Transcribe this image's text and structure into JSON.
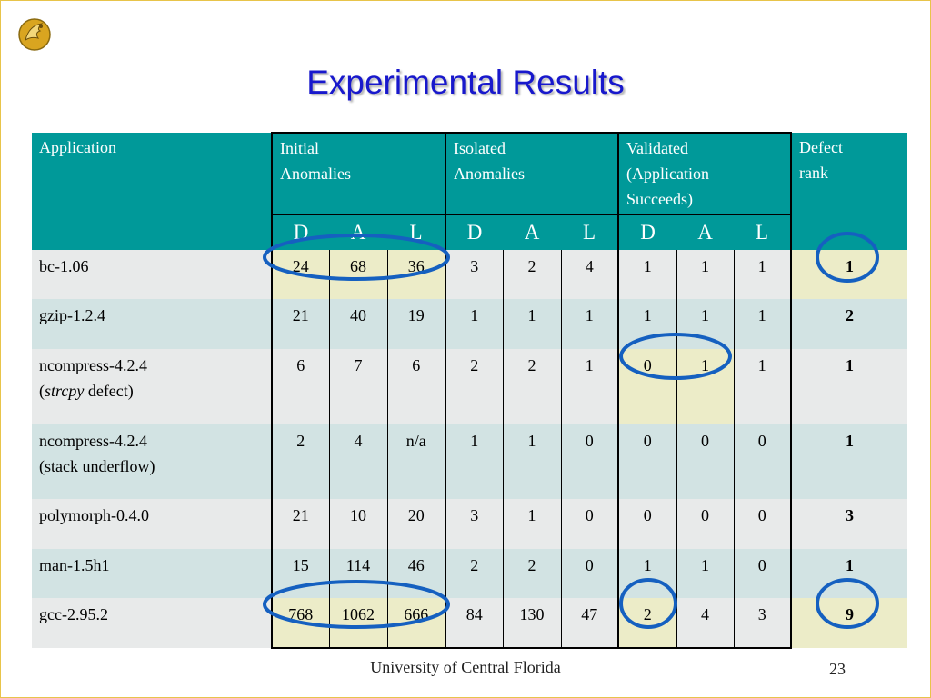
{
  "slide": {
    "title": "Experimental Results",
    "footer": "University of Central Florida",
    "page_number": "23"
  },
  "table": {
    "headers": {
      "application": "Application",
      "initial_line1": "Initial",
      "initial_line2": "Anomalies",
      "isolated_line1": "Isolated",
      "isolated_line2": "Anomalies",
      "validated_line1": "Validated",
      "validated_line2": "(Application",
      "validated_line3": "Succeeds)",
      "defect_line1": "Defect",
      "defect_line2": "rank",
      "d": "D",
      "a": "A",
      "l": "L"
    },
    "rows": [
      {
        "app_line1": "bc-1.06",
        "app_line2": "",
        "values": [
          "24",
          "68",
          "36",
          "3",
          "2",
          "4",
          "1",
          "1",
          "1"
        ],
        "rank": "1"
      },
      {
        "app_line1": "gzip-1.2.4",
        "app_line2": "",
        "values": [
          "21",
          "40",
          "19",
          "1",
          "1",
          "1",
          "1",
          "1",
          "1"
        ],
        "rank": "2"
      },
      {
        "app_line1": "ncompress-4.2.4",
        "app_line2_open": "(",
        "app_line2_italic": "strcpy",
        "app_line2_rest": " defect)",
        "values": [
          "6",
          "7",
          "6",
          "2",
          "2",
          "1",
          "0",
          "1",
          "1"
        ],
        "rank": "1"
      },
      {
        "app_line1": "ncompress-4.2.4",
        "app_line2": "(stack underflow)",
        "values": [
          "2",
          "4",
          "n/a",
          "1",
          "1",
          "0",
          "0",
          "0",
          "0"
        ],
        "rank": "1"
      },
      {
        "app_line1": "polymorph-0.4.0",
        "app_line2": "",
        "values": [
          "21",
          "10",
          "20",
          "3",
          "1",
          "0",
          "0",
          "0",
          "0"
        ],
        "rank": "3"
      },
      {
        "app_line1": "man-1.5h1",
        "app_line2": "",
        "values": [
          "15",
          "114",
          "46",
          "2",
          "2",
          "0",
          "1",
          "1",
          "0"
        ],
        "rank": "1"
      },
      {
        "app_line1": "gcc-2.95.2",
        "app_line2": "",
        "values": [
          "768",
          "1062",
          "666",
          "84",
          "130",
          "47",
          "2",
          "4",
          "3"
        ],
        "rank": "9"
      }
    ]
  },
  "colors": {
    "header_bg": "#009999",
    "row_light": "#e8eaea",
    "row_dark": "#d2e3e3",
    "highlight": "#ececc8",
    "circle": "#1560c0",
    "title": "#1818cc"
  }
}
